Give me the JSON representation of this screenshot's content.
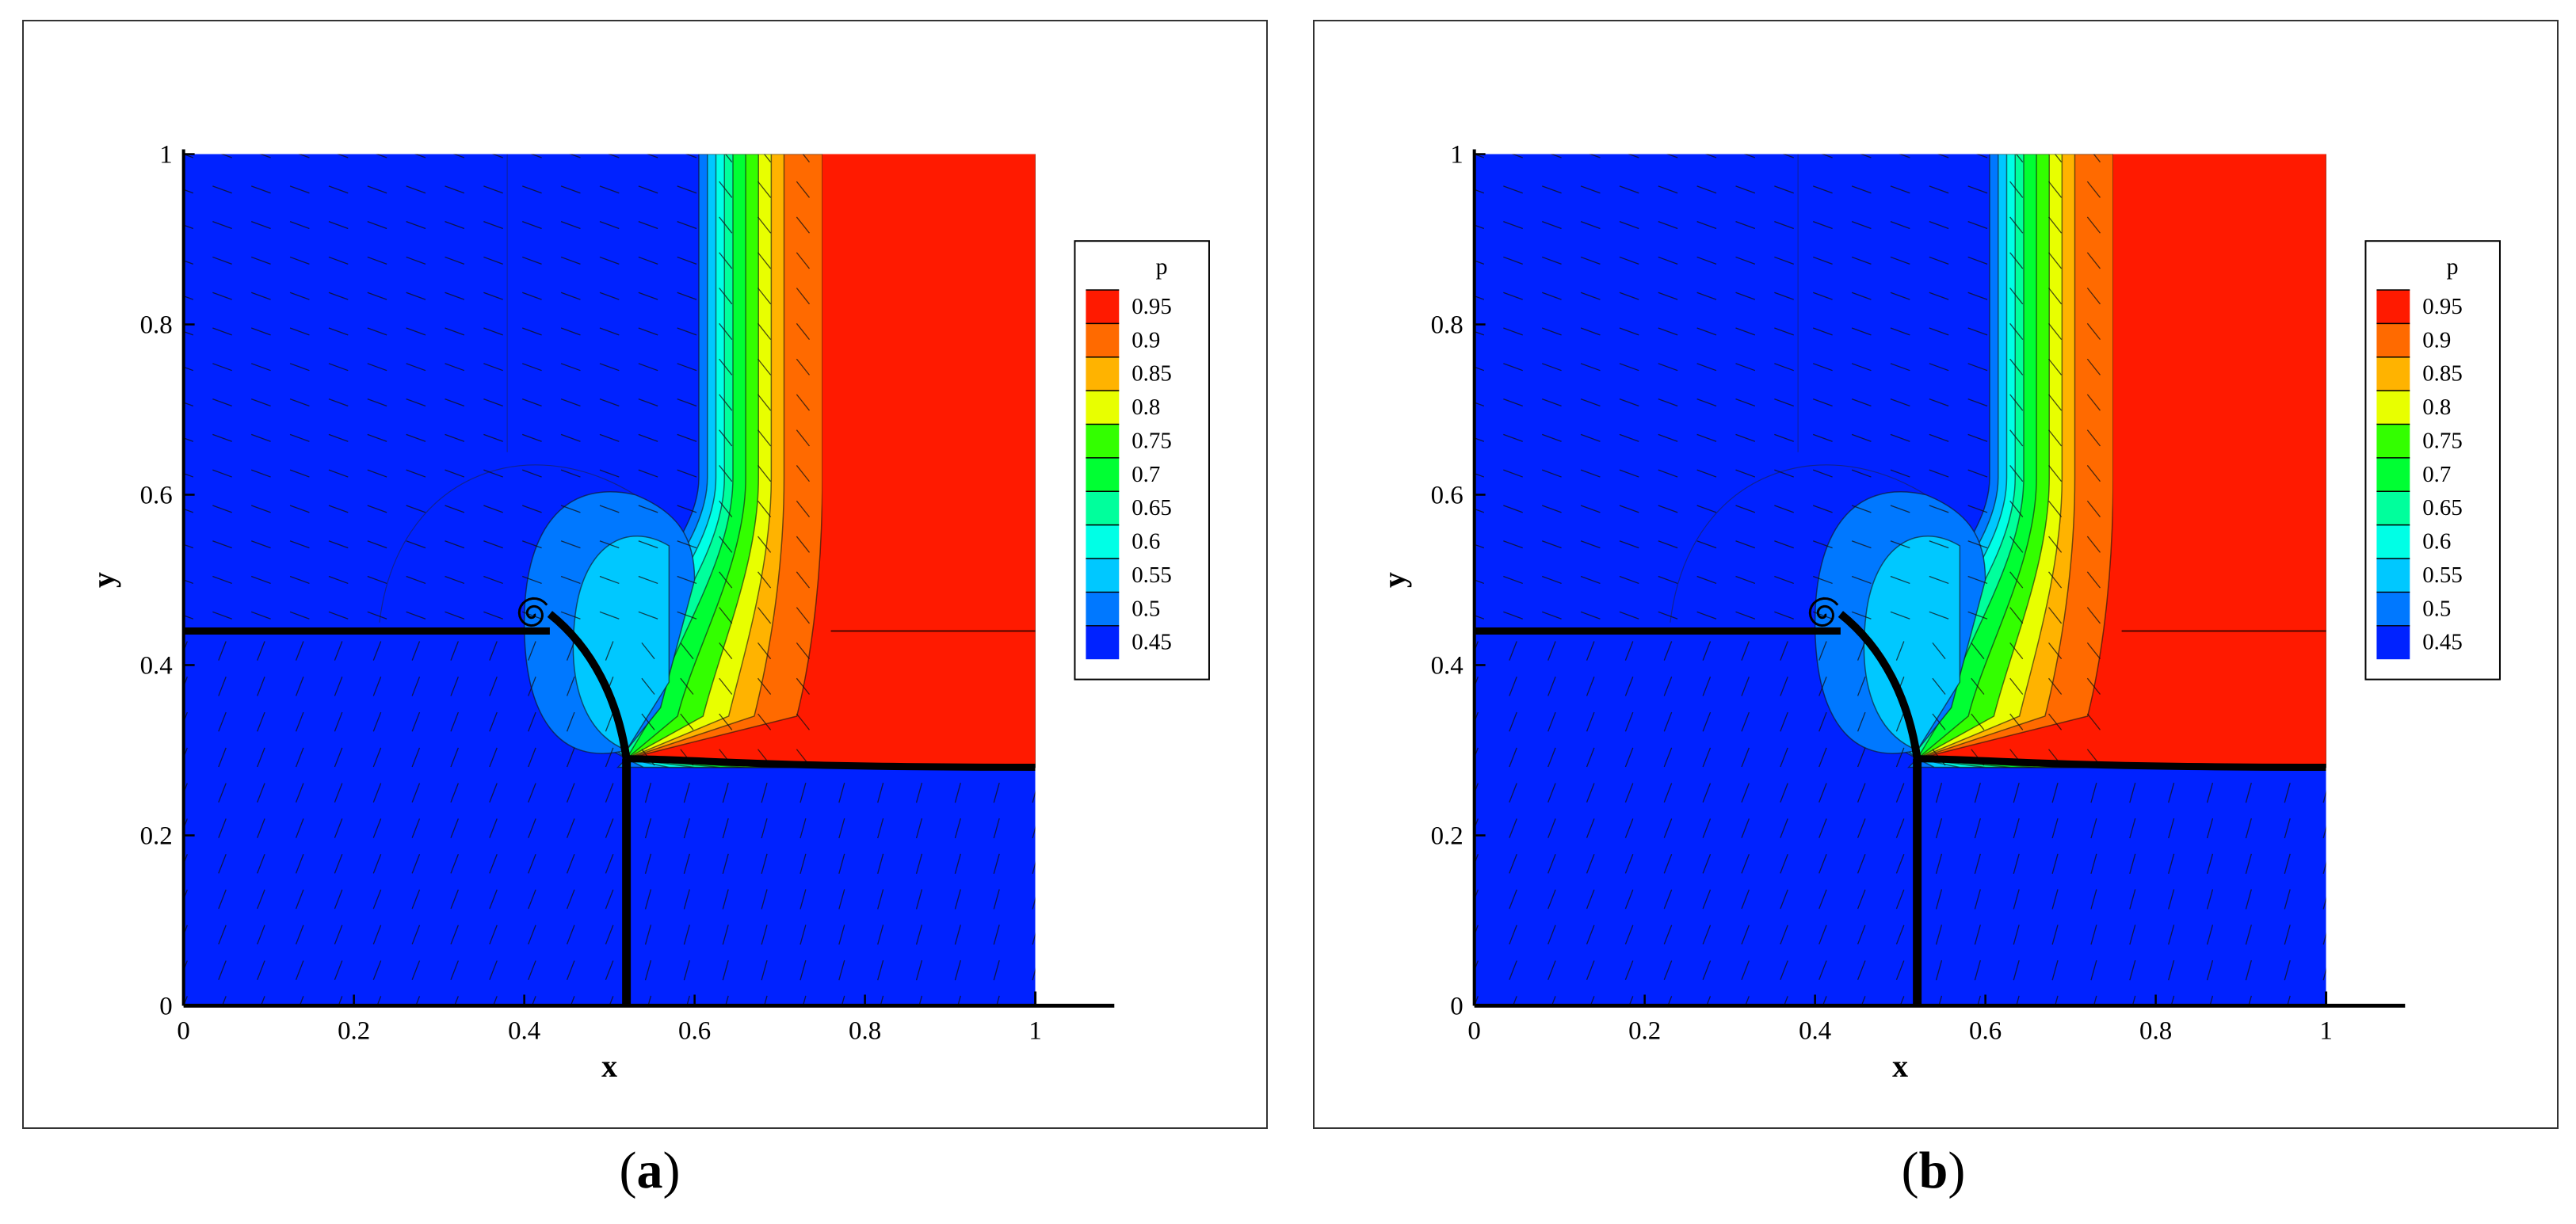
{
  "chart_data": [
    {
      "type": "contour",
      "panel": "a",
      "variable": "p",
      "xlabel": "x",
      "ylabel": "y",
      "xlim": [
        0,
        1
      ],
      "ylim": [
        0,
        1
      ],
      "xticks": [
        "0",
        "0.2",
        "0.4",
        "0.6",
        "0.8",
        "1"
      ],
      "yticks": [
        "0",
        "0.2",
        "0.4",
        "0.6",
        "0.8",
        "1"
      ],
      "legend": {
        "title": "p",
        "placement": "right",
        "levels": [
          0.95,
          0.9,
          0.85,
          0.8,
          0.75,
          0.7,
          0.65,
          0.6,
          0.55,
          0.5,
          0.45
        ],
        "labels": [
          "0.95",
          "0.9",
          "0.85",
          "0.8",
          "0.75",
          "0.7",
          "0.65",
          "0.6",
          "0.55",
          "0.5",
          "0.45"
        ],
        "colors": [
          "#ff1a00",
          "#ff6a00",
          "#ffb300",
          "#e8ff00",
          "#33ff00",
          "#00ff33",
          "#00ff9c",
          "#00ffe6",
          "#00c8ff",
          "#0078ff",
          "#0022ff"
        ]
      },
      "shock_lines": {
        "horizontal_left_y": 0.44,
        "horizontal_right_y": 0.28,
        "vertical_x": 0.52,
        "triple_point": [
          0.52,
          0.29
        ],
        "vortex_center": [
          0.41,
          0.46
        ]
      },
      "regions": {
        "low_pressure": "blue (p ≈ 0.45)",
        "high_pressure": "red (p ≈ 0.95) for x > 0.75, y > 0.28"
      },
      "velocity_vectors": true
    },
    {
      "type": "contour",
      "panel": "b",
      "variable": "p",
      "xlabel": "x",
      "ylabel": "y",
      "xlim": [
        0,
        1
      ],
      "ylim": [
        0,
        1
      ],
      "xticks": [
        "0",
        "0.2",
        "0.4",
        "0.6",
        "0.8",
        "1"
      ],
      "yticks": [
        "0",
        "0.2",
        "0.4",
        "0.6",
        "0.8",
        "1"
      ],
      "legend": {
        "title": "p",
        "placement": "right",
        "levels": [
          0.95,
          0.9,
          0.85,
          0.8,
          0.75,
          0.7,
          0.65,
          0.6,
          0.55,
          0.5,
          0.45
        ],
        "labels": [
          "0.95",
          "0.9",
          "0.85",
          "0.8",
          "0.75",
          "0.7",
          "0.65",
          "0.6",
          "0.55",
          "0.5",
          "0.45"
        ],
        "colors": [
          "#ff1a00",
          "#ff6a00",
          "#ffb300",
          "#e8ff00",
          "#33ff00",
          "#00ff33",
          "#00ff9c",
          "#00ffe6",
          "#00c8ff",
          "#0078ff",
          "#0022ff"
        ]
      },
      "shock_lines": {
        "horizontal_left_y": 0.44,
        "horizontal_right_y": 0.28,
        "vertical_x": 0.52,
        "triple_point": [
          0.52,
          0.29
        ],
        "vortex_center": [
          0.41,
          0.46
        ]
      },
      "regions": {
        "low_pressure": "blue (p ≈ 0.45)",
        "high_pressure": "red (p ≈ 0.95) for x > 0.75, y > 0.28"
      },
      "velocity_vectors": true
    }
  ],
  "captions": {
    "a": "a",
    "b": "b"
  }
}
